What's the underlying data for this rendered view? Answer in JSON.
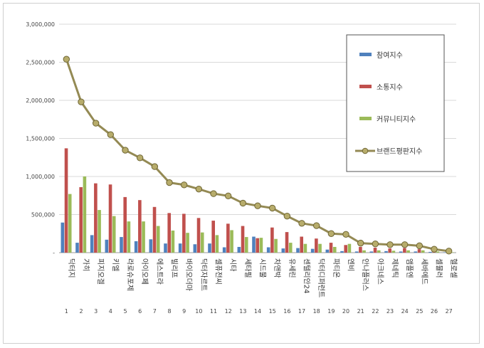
{
  "chart_data": {
    "type": "bar",
    "title": "",
    "xlabel": "",
    "ylabel": "",
    "ylim": [
      0,
      3000000
    ],
    "yticks": [
      "3,000,000",
      "2,500,000",
      "2,000,000",
      "1,500,000",
      "1,000,000",
      "500,000",
      "-"
    ],
    "ytick_values": [
      3000000,
      2500000,
      2000000,
      1500000,
      1000000,
      500000,
      0
    ],
    "grid": true,
    "legend_position": "right",
    "categories": [
      "닥터지",
      "가히",
      "피지오겔",
      "키엘",
      "라로슈포제",
      "아이오페",
      "에스트라",
      "빌리프",
      "바이오더마",
      "닥터자르트",
      "셀퓨전씨",
      "시타",
      "세타필",
      "시드물",
      "차앤박",
      "유세린",
      "센텔리안24",
      "닥터디퍼런트",
      "파티온",
      "엔비",
      "안나플러스",
      "아크네스",
      "제네틱",
      "앰플엔",
      "세바메드",
      "셀뮬러",
      "헬로셀"
    ],
    "ranks": [
      "1",
      "2",
      "3",
      "4",
      "5",
      "6",
      "7",
      "8",
      "9",
      "10",
      "11",
      "12",
      "13",
      "14",
      "15",
      "16",
      "17",
      "18",
      "19",
      "20",
      "21",
      "22",
      "23",
      "24",
      "25",
      "26",
      "27"
    ],
    "series": [
      {
        "name": "참여지수",
        "type": "bar",
        "color": "#4f81bd",
        "values": [
          395000,
          130000,
          230000,
          170000,
          205000,
          150000,
          175000,
          120000,
          120000,
          110000,
          120000,
          70000,
          75000,
          210000,
          70000,
          55000,
          60000,
          50000,
          40000,
          20000,
          15000,
          15000,
          20000,
          15000,
          15000,
          10000,
          5000
        ]
      },
      {
        "name": "소통지수",
        "type": "bar",
        "color": "#c0504d",
        "values": [
          1370000,
          860000,
          910000,
          895000,
          730000,
          690000,
          600000,
          520000,
          510000,
          455000,
          420000,
          380000,
          350000,
          190000,
          330000,
          270000,
          210000,
          185000,
          130000,
          100000,
          75000,
          65000,
          55000,
          60000,
          45000,
          20000,
          10000
        ]
      },
      {
        "name": "커뮤니티지수",
        "type": "bar",
        "color": "#9bbb59",
        "values": [
          770000,
          1000000,
          560000,
          480000,
          410000,
          410000,
          350000,
          290000,
          260000,
          265000,
          230000,
          295000,
          205000,
          195000,
          180000,
          130000,
          115000,
          115000,
          75000,
          115000,
          30000,
          30000,
          25000,
          30000,
          30000,
          15000,
          5000
        ]
      },
      {
        "name": "브랜드평판지수",
        "type": "line",
        "color": "#948a54",
        "values": [
          2540000,
          1980000,
          1700000,
          1550000,
          1345000,
          1245000,
          1130000,
          920000,
          890000,
          835000,
          775000,
          745000,
          650000,
          615000,
          585000,
          480000,
          385000,
          355000,
          250000,
          240000,
          125000,
          115000,
          105000,
          105000,
          90000,
          45000,
          20000
        ]
      }
    ]
  }
}
